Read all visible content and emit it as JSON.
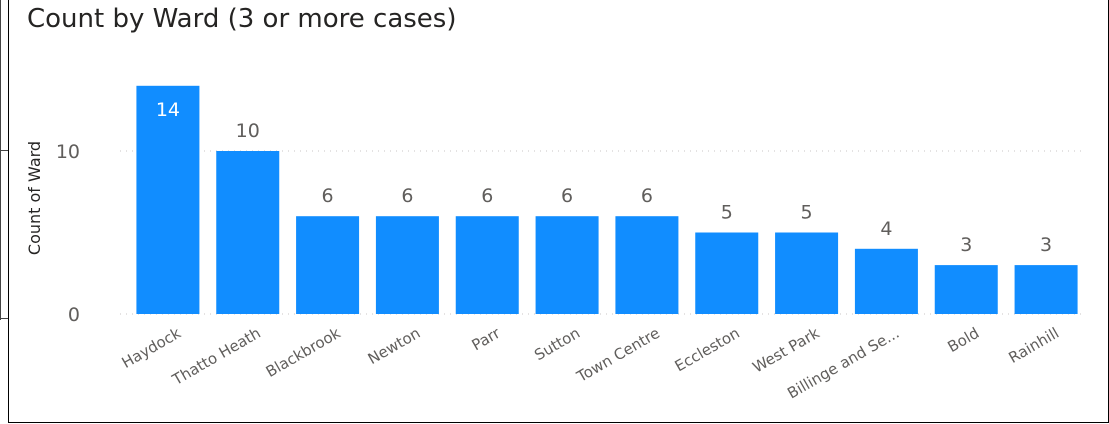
{
  "chart_data": {
    "type": "bar",
    "title": "Count by Ward (3 or more cases)",
    "xlabel": "",
    "ylabel": "Count of Ward",
    "categories": [
      "Haydock",
      "Thatto Heath",
      "Blackbrook",
      "Newton",
      "Parr",
      "Sutton",
      "Town Centre",
      "Eccleston",
      "West Park",
      "Billinge and Se...",
      "Bold",
      "Rainhill"
    ],
    "values": [
      14,
      10,
      6,
      6,
      6,
      6,
      6,
      5,
      5,
      4,
      3,
      3
    ],
    "yticks": [
      "0",
      "10"
    ],
    "ylim": [
      0,
      14
    ],
    "grid": true,
    "legend": "none",
    "bar_color": "#118DFF",
    "label_color_inside": "#ffffff",
    "label_color_outside": "#605e5c",
    "gridline_color": "#c8c6c4"
  }
}
